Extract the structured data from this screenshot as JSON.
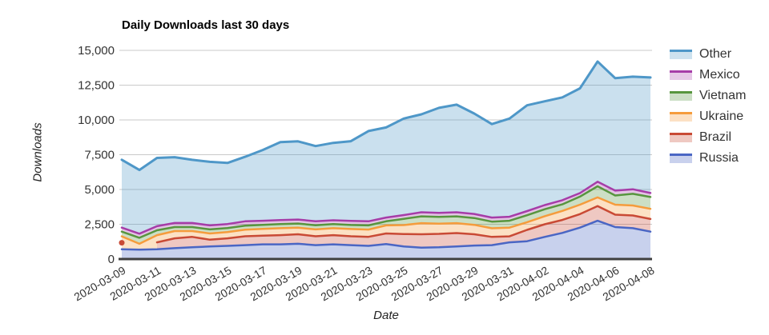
{
  "title": "Daily Downloads last 30 days",
  "axes": {
    "y_label": "Downloads",
    "x_label": "Date",
    "y_tick_values": [
      0,
      2500,
      5000,
      7500,
      10000,
      12500,
      15000
    ],
    "y_tick_labels": [
      "0",
      "2,500",
      "5,000",
      "7,500",
      "10,000",
      "12,500",
      "15,000"
    ],
    "x_tick_labels": [
      "2020-03-09",
      "2020-03-11",
      "2020-03-13",
      "2020-03-15",
      "2020-03-17",
      "2020-03-19",
      "2020-03-21",
      "2020-03-23",
      "2020-03-25",
      "2020-03-27",
      "2020-03-29",
      "2020-03-31",
      "2020-04-02",
      "2020-04-04",
      "2020-04-06",
      "2020-04-08"
    ]
  },
  "legend": {
    "items": [
      {
        "label": "Other",
        "color": "#4E97C8",
        "fill": "#CDE2EF"
      },
      {
        "label": "Mexico",
        "color": "#A63CA8",
        "fill": "#E6C8E7"
      },
      {
        "label": "Vietnam",
        "color": "#57963E",
        "fill": "#CCDFC6"
      },
      {
        "label": "Ukraine",
        "color": "#F59C3C",
        "fill": "#FCE1C4"
      },
      {
        "label": "Brazil",
        "color": "#C94A35",
        "fill": "#EFC9C2"
      },
      {
        "label": "Russia",
        "color": "#4A66C4",
        "fill": "#C9D1ED"
      }
    ]
  },
  "chart_data": {
    "type": "area",
    "stacked": true,
    "title": "Daily Downloads last 30 days",
    "xlabel": "Date",
    "ylabel": "Downloads",
    "ylim": [
      0,
      15000
    ],
    "grid": true,
    "legend_position": "right",
    "note": "Brazil has no data on 2020-03-10; its 2020-03-09 value renders as an isolated dot and its band resumes 2020-03-11.",
    "x": [
      "2020-03-09",
      "2020-03-10",
      "2020-03-11",
      "2020-03-12",
      "2020-03-13",
      "2020-03-14",
      "2020-03-15",
      "2020-03-16",
      "2020-03-17",
      "2020-03-18",
      "2020-03-19",
      "2020-03-20",
      "2020-03-21",
      "2020-03-22",
      "2020-03-23",
      "2020-03-24",
      "2020-03-25",
      "2020-03-26",
      "2020-03-27",
      "2020-03-28",
      "2020-03-29",
      "2020-03-30",
      "2020-03-31",
      "2020-04-01",
      "2020-04-02",
      "2020-04-03",
      "2020-04-04",
      "2020-04-05",
      "2020-04-06",
      "2020-04-07",
      "2020-04-08"
    ],
    "stack_order": [
      "Russia",
      "Brazil",
      "Ukraine",
      "Vietnam",
      "Mexico",
      "Other"
    ],
    "fill_opacity": 0.3,
    "series": [
      {
        "name": "Russia",
        "color": "#4A66C4",
        "values": [
          700,
          680,
          700,
          780,
          850,
          900,
          950,
          1000,
          1060,
          1060,
          1100,
          1000,
          1060,
          1000,
          950,
          1080,
          900,
          820,
          850,
          910,
          970,
          1000,
          1200,
          1280,
          1590,
          1880,
          2260,
          2750,
          2300,
          2220,
          1970
        ]
      },
      {
        "name": "Brazil",
        "color": "#C94A35",
        "values": [
          470,
          null,
          500,
          710,
          740,
          490,
          540,
          640,
          620,
          660,
          680,
          640,
          660,
          640,
          650,
          760,
          900,
          960,
          960,
          960,
          810,
          590,
          430,
          820,
          910,
          930,
          970,
          1060,
          890,
          910,
          910
        ]
      },
      {
        "name": "Ukraine",
        "color": "#F59C3C",
        "values": [
          460,
          420,
          520,
          520,
          420,
          450,
          450,
          470,
          490,
          500,
          480,
          490,
          500,
          520,
          520,
          580,
          640,
          800,
          730,
          710,
          680,
          620,
          630,
          550,
          580,
          650,
          680,
          620,
          720,
          720,
          730
        ]
      },
      {
        "name": "Vietnam",
        "color": "#57963E",
        "values": [
          340,
          430,
          350,
          290,
          290,
          290,
          290,
          290,
          290,
          300,
          290,
          300,
          290,
          290,
          300,
          290,
          450,
          490,
          490,
          490,
          490,
          480,
          490,
          500,
          500,
          470,
          580,
          800,
          660,
          840,
          850
        ]
      },
      {
        "name": "Mexico",
        "color": "#A63CA8",
        "values": [
          290,
          290,
          290,
          290,
          290,
          290,
          290,
          310,
          290,
          280,
          290,
          290,
          280,
          290,
          290,
          270,
          270,
          290,
          290,
          290,
          290,
          290,
          290,
          300,
          300,
          300,
          250,
          330,
          350,
          330,
          290
        ]
      },
      {
        "name": "Other",
        "color": "#4E97C8",
        "values": [
          4880,
          4580,
          4910,
          4730,
          4540,
          4570,
          4390,
          4640,
          5090,
          5600,
          5620,
          5400,
          5560,
          5730,
          6490,
          6480,
          6940,
          7040,
          7550,
          7740,
          7220,
          6720,
          7060,
          7600,
          7460,
          7390,
          7530,
          8640,
          8080,
          8090,
          8300
        ]
      }
    ]
  }
}
